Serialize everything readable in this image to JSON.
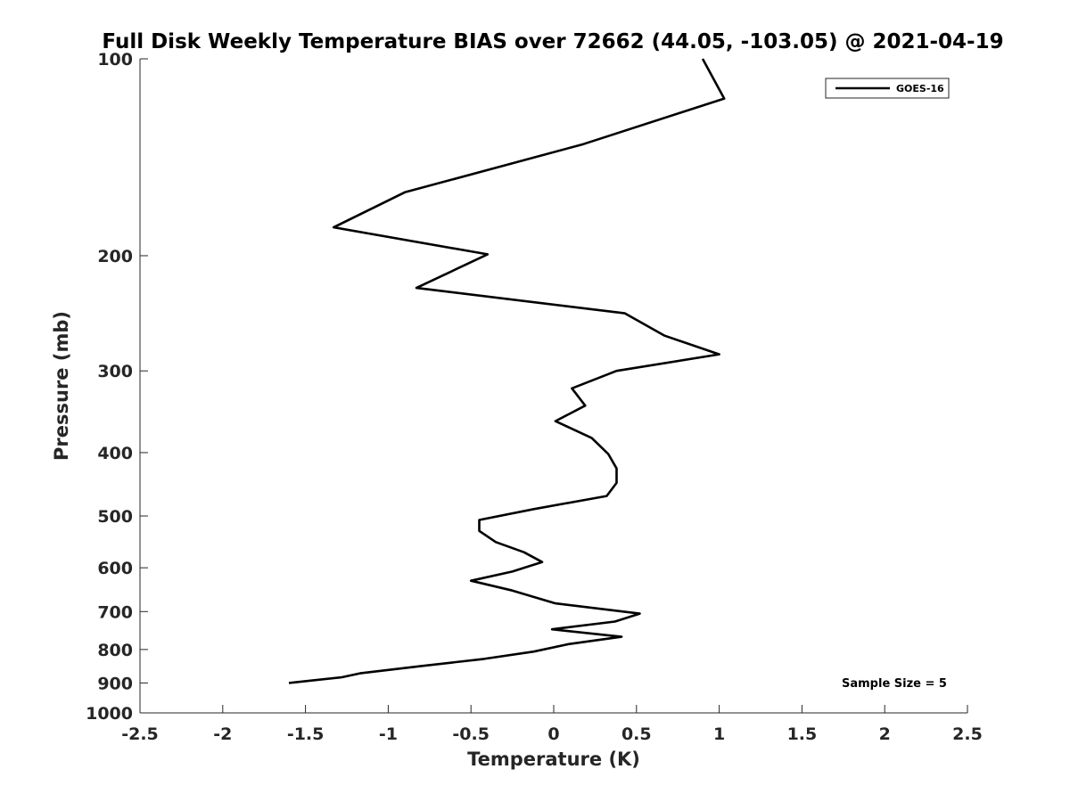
{
  "chart_data": {
    "type": "line",
    "title": "Full Disk Weekly Temperature BIAS over 72662 (44.05, -103.05) @ 2021-04-19",
    "xlabel": "Temperature (K)",
    "ylabel": "Pressure (mb)",
    "xlim": [
      -2.5,
      2.5
    ],
    "ylim": [
      1000,
      100
    ],
    "y_scale": "log",
    "y_reversed": true,
    "x_ticks": [
      -2.5,
      -2,
      -1.5,
      -1,
      -0.5,
      0,
      0.5,
      1,
      1.5,
      2,
      2.5
    ],
    "x_tick_labels": [
      "-2.5",
      "-2",
      "-1.5",
      "-1",
      "-0.5",
      "0",
      "0.5",
      "1",
      "1.5",
      "2",
      "2.5"
    ],
    "y_ticks": [
      100,
      200,
      300,
      400,
      500,
      600,
      700,
      800,
      900,
      1000
    ],
    "y_tick_labels": [
      "100",
      "200",
      "300",
      "400",
      "500",
      "600",
      "700",
      "800",
      "900",
      "1000"
    ],
    "grid": false,
    "legend_position": "top-right",
    "annotation": "Sample Size = 5",
    "series": [
      {
        "name": "GOES-16",
        "color": "#000000",
        "points": [
          [
            0.9,
            100
          ],
          [
            1.03,
            115
          ],
          [
            0.18,
            135
          ],
          [
            -0.9,
            160
          ],
          [
            -1.33,
            181
          ],
          [
            -0.4,
            199
          ],
          [
            -0.83,
            224
          ],
          [
            0.43,
            245
          ],
          [
            0.67,
            265
          ],
          [
            1.0,
            283
          ],
          [
            0.38,
            300
          ],
          [
            0.11,
            319
          ],
          [
            0.19,
            339
          ],
          [
            0.01,
            358
          ],
          [
            0.23,
            380
          ],
          [
            0.33,
            402
          ],
          [
            0.38,
            423
          ],
          [
            0.38,
            445
          ],
          [
            0.32,
            466
          ],
          [
            -0.12,
            488
          ],
          [
            -0.45,
            507
          ],
          [
            -0.45,
            527
          ],
          [
            -0.35,
            548
          ],
          [
            -0.18,
            568
          ],
          [
            -0.07,
            588
          ],
          [
            -0.25,
            608
          ],
          [
            -0.5,
            628
          ],
          [
            -0.25,
            650
          ],
          [
            0.01,
            680
          ],
          [
            0.52,
            705
          ],
          [
            0.37,
            725
          ],
          [
            -0.01,
            745
          ],
          [
            0.41,
            765
          ],
          [
            0.09,
            785
          ],
          [
            -0.12,
            806
          ],
          [
            -0.42,
            827
          ],
          [
            -0.8,
            848
          ],
          [
            -1.17,
            870
          ],
          [
            -1.28,
            882
          ],
          [
            -1.6,
            900
          ]
        ]
      }
    ]
  }
}
